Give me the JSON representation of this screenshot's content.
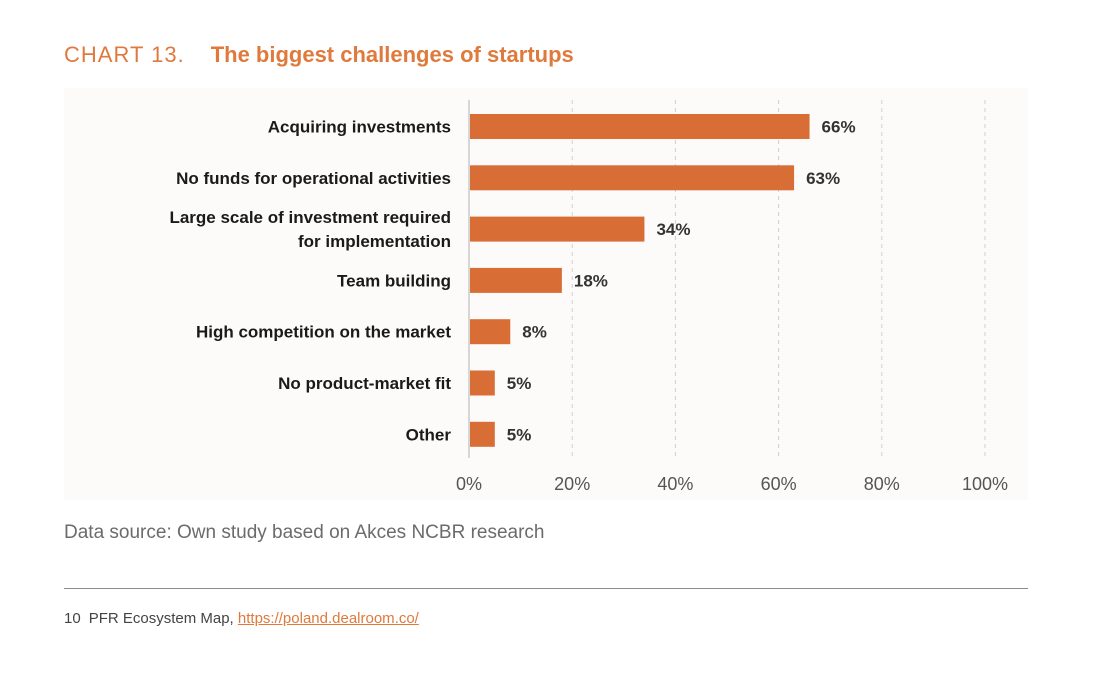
{
  "heading": {
    "number": "CHART 13.",
    "title": "The biggest challenges of startups"
  },
  "chart_data": {
    "type": "bar",
    "orientation": "horizontal",
    "categories": [
      "Acquiring investments",
      "No funds for operational activities",
      "Large scale of investment required for implementation",
      "Team building",
      "High competition on the market",
      "No product-market fit",
      "Other"
    ],
    "category_lines": [
      [
        "Acquiring investments"
      ],
      [
        "No funds for operational activities"
      ],
      [
        "Large scale of investment required",
        "for implementation"
      ],
      [
        "Team building"
      ],
      [
        "High competition on the market"
      ],
      [
        "No product-market fit"
      ],
      [
        "Other"
      ]
    ],
    "values": [
      66,
      63,
      34,
      18,
      8,
      5,
      5
    ],
    "value_labels": [
      "66%",
      "63%",
      "34%",
      "18%",
      "8%",
      "5%",
      "5%"
    ],
    "xlim": [
      0,
      100
    ],
    "xticks": [
      0,
      20,
      40,
      60,
      80,
      100
    ],
    "xtick_labels": [
      "0%",
      "20%",
      "40%",
      "60%",
      "80%",
      "100%"
    ],
    "grid": "vertical dashed",
    "colors": {
      "bar": "#d86e36",
      "grid": "#cfcfcf",
      "axis": "#bdbdbd",
      "label": "#1a1a1a",
      "value_label": "#333333",
      "tick_label": "#555555"
    }
  },
  "source": "Data source: Own study based on Akces NCBR research",
  "footnote": {
    "number": "10",
    "text": "PFR Ecosystem Map,",
    "link": "https://poland.dealroom.co/"
  }
}
